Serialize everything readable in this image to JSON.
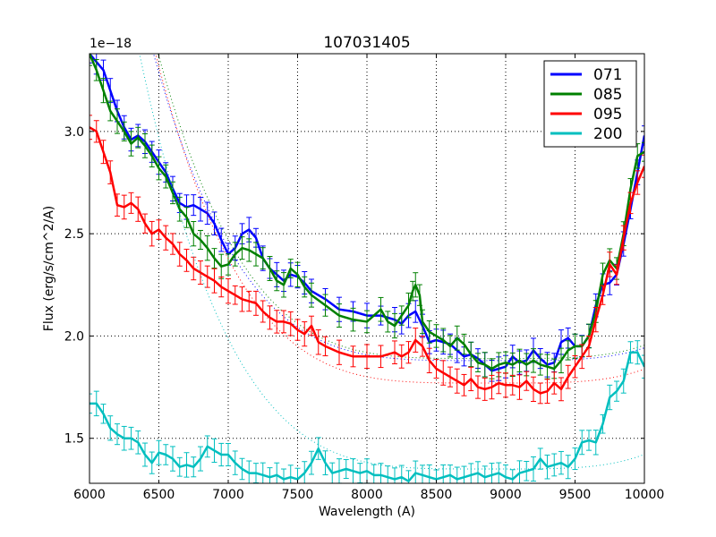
{
  "chart_data": {
    "type": "line",
    "title": "107031405",
    "xlabel": "Wavelength (A)",
    "ylabel": "Flux (erg/s/cm^2/A)",
    "offset_text": "1e−18",
    "xlim": [
      6000,
      10000
    ],
    "ylim": [
      1.28,
      3.38
    ],
    "x_ticks": [
      6000,
      6500,
      7000,
      7500,
      8000,
      8500,
      9000,
      9500,
      10000
    ],
    "x_tick_labels": [
      "6000",
      "6500",
      "7000",
      "7500",
      "8000",
      "8500",
      "9000",
      "9500",
      "10000"
    ],
    "y_ticks": [
      1.5,
      2.0,
      2.5,
      3.0
    ],
    "y_tick_labels": [
      "1.5",
      "2.0",
      "2.5",
      "3.0"
    ],
    "grid": true,
    "legend_position": "top-right",
    "series": [
      {
        "name": "071",
        "color": "#0000ff",
        "points": [
          [
            6000,
            3.38
          ],
          [
            6050,
            3.34
          ],
          [
            6100,
            3.3
          ],
          [
            6150,
            3.2
          ],
          [
            6200,
            3.1
          ],
          [
            6250,
            3.02
          ],
          [
            6300,
            2.96
          ],
          [
            6350,
            2.98
          ],
          [
            6400,
            2.95
          ],
          [
            6450,
            2.9
          ],
          [
            6500,
            2.85
          ],
          [
            6550,
            2.8
          ],
          [
            6600,
            2.72
          ],
          [
            6650,
            2.65
          ],
          [
            6700,
            2.63
          ],
          [
            6750,
            2.64
          ],
          [
            6800,
            2.62
          ],
          [
            6850,
            2.6
          ],
          [
            6900,
            2.55
          ],
          [
            6950,
            2.47
          ],
          [
            7000,
            2.4
          ],
          [
            7050,
            2.43
          ],
          [
            7100,
            2.5
          ],
          [
            7150,
            2.52
          ],
          [
            7200,
            2.48
          ],
          [
            7250,
            2.38
          ],
          [
            7300,
            2.33
          ],
          [
            7350,
            2.3
          ],
          [
            7400,
            2.27
          ],
          [
            7450,
            2.3
          ],
          [
            7500,
            2.29
          ],
          [
            7550,
            2.26
          ],
          [
            7600,
            2.22
          ],
          [
            7700,
            2.18
          ],
          [
            7800,
            2.13
          ],
          [
            7900,
            2.12
          ],
          [
            8000,
            2.1
          ],
          [
            8100,
            2.1
          ],
          [
            8200,
            2.08
          ],
          [
            8250,
            2.06
          ],
          [
            8300,
            2.1
          ],
          [
            8350,
            2.12
          ],
          [
            8400,
            2.05
          ],
          [
            8450,
            1.97
          ],
          [
            8500,
            1.98
          ],
          [
            8550,
            1.97
          ],
          [
            8600,
            1.96
          ],
          [
            8650,
            1.93
          ],
          [
            8700,
            1.9
          ],
          [
            8750,
            1.91
          ],
          [
            8800,
            1.89
          ],
          [
            8850,
            1.86
          ],
          [
            8900,
            1.83
          ],
          [
            8950,
            1.84
          ],
          [
            9000,
            1.85
          ],
          [
            9050,
            1.9
          ],
          [
            9100,
            1.87
          ],
          [
            9150,
            1.88
          ],
          [
            9200,
            1.93
          ],
          [
            9250,
            1.89
          ],
          [
            9300,
            1.86
          ],
          [
            9350,
            1.87
          ],
          [
            9400,
            1.97
          ],
          [
            9450,
            1.99
          ],
          [
            9500,
            1.95
          ],
          [
            9550,
            1.95
          ],
          [
            9600,
            2.0
          ],
          [
            9650,
            2.15
          ],
          [
            9700,
            2.25
          ],
          [
            9750,
            2.26
          ],
          [
            9800,
            2.3
          ],
          [
            9850,
            2.45
          ],
          [
            9900,
            2.62
          ],
          [
            9950,
            2.8
          ],
          [
            10000,
            2.98
          ]
        ]
      },
      {
        "name": "085",
        "color": "#008000",
        "points": [
          [
            6000,
            3.38
          ],
          [
            6050,
            3.3
          ],
          [
            6100,
            3.2
          ],
          [
            6150,
            3.1
          ],
          [
            6200,
            3.05
          ],
          [
            6250,
            3.0
          ],
          [
            6300,
            2.94
          ],
          [
            6350,
            2.97
          ],
          [
            6400,
            2.93
          ],
          [
            6450,
            2.88
          ],
          [
            6500,
            2.82
          ],
          [
            6550,
            2.78
          ],
          [
            6600,
            2.7
          ],
          [
            6650,
            2.62
          ],
          [
            6700,
            2.58
          ],
          [
            6750,
            2.5
          ],
          [
            6800,
            2.47
          ],
          [
            6850,
            2.43
          ],
          [
            6900,
            2.38
          ],
          [
            6950,
            2.34
          ],
          [
            7000,
            2.35
          ],
          [
            7050,
            2.4
          ],
          [
            7100,
            2.43
          ],
          [
            7150,
            2.42
          ],
          [
            7200,
            2.4
          ],
          [
            7250,
            2.38
          ],
          [
            7300,
            2.33
          ],
          [
            7350,
            2.27
          ],
          [
            7400,
            2.25
          ],
          [
            7450,
            2.33
          ],
          [
            7500,
            2.3
          ],
          [
            7550,
            2.24
          ],
          [
            7600,
            2.2
          ],
          [
            7700,
            2.15
          ],
          [
            7800,
            2.1
          ],
          [
            7900,
            2.08
          ],
          [
            8000,
            2.07
          ],
          [
            8100,
            2.13
          ],
          [
            8150,
            2.07
          ],
          [
            8200,
            2.05
          ],
          [
            8250,
            2.1
          ],
          [
            8300,
            2.15
          ],
          [
            8330,
            2.22
          ],
          [
            8350,
            2.25
          ],
          [
            8380,
            2.2
          ],
          [
            8400,
            2.07
          ],
          [
            8450,
            2.02
          ],
          [
            8500,
            2.0
          ],
          [
            8550,
            1.98
          ],
          [
            8600,
            1.95
          ],
          [
            8650,
            1.99
          ],
          [
            8700,
            1.96
          ],
          [
            8750,
            1.91
          ],
          [
            8800,
            1.87
          ],
          [
            8850,
            1.86
          ],
          [
            8900,
            1.84
          ],
          [
            8950,
            1.86
          ],
          [
            9000,
            1.87
          ],
          [
            9050,
            1.86
          ],
          [
            9100,
            1.88
          ],
          [
            9150,
            1.86
          ],
          [
            9200,
            1.88
          ],
          [
            9250,
            1.86
          ],
          [
            9300,
            1.85
          ],
          [
            9350,
            1.84
          ],
          [
            9400,
            1.88
          ],
          [
            9450,
            1.93
          ],
          [
            9500,
            1.95
          ],
          [
            9550,
            1.95
          ],
          [
            9600,
            2.0
          ],
          [
            9650,
            2.12
          ],
          [
            9700,
            2.3
          ],
          [
            9750,
            2.37
          ],
          [
            9800,
            2.33
          ],
          [
            9850,
            2.5
          ],
          [
            9900,
            2.72
          ],
          [
            9950,
            2.88
          ],
          [
            10000,
            2.9
          ]
        ]
      },
      {
        "name": "095",
        "color": "#ff0000",
        "points": [
          [
            6000,
            3.02
          ],
          [
            6050,
            3.0
          ],
          [
            6100,
            2.9
          ],
          [
            6150,
            2.8
          ],
          [
            6200,
            2.64
          ],
          [
            6250,
            2.63
          ],
          [
            6300,
            2.65
          ],
          [
            6350,
            2.62
          ],
          [
            6400,
            2.55
          ],
          [
            6450,
            2.5
          ],
          [
            6500,
            2.52
          ],
          [
            6550,
            2.48
          ],
          [
            6600,
            2.45
          ],
          [
            6650,
            2.4
          ],
          [
            6700,
            2.37
          ],
          [
            6750,
            2.33
          ],
          [
            6800,
            2.31
          ],
          [
            6850,
            2.29
          ],
          [
            6900,
            2.27
          ],
          [
            6950,
            2.24
          ],
          [
            7000,
            2.22
          ],
          [
            7050,
            2.2
          ],
          [
            7100,
            2.18
          ],
          [
            7150,
            2.17
          ],
          [
            7200,
            2.16
          ],
          [
            7250,
            2.12
          ],
          [
            7300,
            2.09
          ],
          [
            7350,
            2.07
          ],
          [
            7400,
            2.07
          ],
          [
            7450,
            2.06
          ],
          [
            7500,
            2.03
          ],
          [
            7550,
            2.01
          ],
          [
            7600,
            2.05
          ],
          [
            7650,
            1.97
          ],
          [
            7700,
            1.95
          ],
          [
            7800,
            1.92
          ],
          [
            7900,
            1.9
          ],
          [
            8000,
            1.9
          ],
          [
            8100,
            1.9
          ],
          [
            8200,
            1.92
          ],
          [
            8250,
            1.9
          ],
          [
            8300,
            1.92
          ],
          [
            8350,
            1.98
          ],
          [
            8400,
            1.95
          ],
          [
            8450,
            1.88
          ],
          [
            8500,
            1.84
          ],
          [
            8550,
            1.82
          ],
          [
            8600,
            1.8
          ],
          [
            8650,
            1.78
          ],
          [
            8700,
            1.76
          ],
          [
            8750,
            1.79
          ],
          [
            8800,
            1.75
          ],
          [
            8850,
            1.74
          ],
          [
            8900,
            1.75
          ],
          [
            8950,
            1.77
          ],
          [
            9000,
            1.76
          ],
          [
            9050,
            1.76
          ],
          [
            9100,
            1.75
          ],
          [
            9150,
            1.78
          ],
          [
            9200,
            1.74
          ],
          [
            9250,
            1.72
          ],
          [
            9300,
            1.73
          ],
          [
            9350,
            1.77
          ],
          [
            9400,
            1.74
          ],
          [
            9450,
            1.8
          ],
          [
            9500,
            1.85
          ],
          [
            9550,
            1.9
          ],
          [
            9600,
            1.95
          ],
          [
            9650,
            2.08
          ],
          [
            9700,
            2.2
          ],
          [
            9750,
            2.35
          ],
          [
            9800,
            2.3
          ],
          [
            9850,
            2.48
          ],
          [
            9900,
            2.65
          ],
          [
            9950,
            2.75
          ],
          [
            10000,
            2.83
          ]
        ]
      },
      {
        "name": "200",
        "color": "#00bfbf",
        "points": [
          [
            6000,
            1.67
          ],
          [
            6050,
            1.67
          ],
          [
            6100,
            1.62
          ],
          [
            6150,
            1.55
          ],
          [
            6200,
            1.52
          ],
          [
            6250,
            1.5
          ],
          [
            6300,
            1.5
          ],
          [
            6350,
            1.48
          ],
          [
            6400,
            1.42
          ],
          [
            6450,
            1.38
          ],
          [
            6500,
            1.43
          ],
          [
            6550,
            1.42
          ],
          [
            6600,
            1.4
          ],
          [
            6650,
            1.36
          ],
          [
            6700,
            1.37
          ],
          [
            6750,
            1.36
          ],
          [
            6800,
            1.4
          ],
          [
            6850,
            1.46
          ],
          [
            6900,
            1.44
          ],
          [
            6950,
            1.42
          ],
          [
            7000,
            1.42
          ],
          [
            7050,
            1.38
          ],
          [
            7100,
            1.35
          ],
          [
            7150,
            1.33
          ],
          [
            7200,
            1.33
          ],
          [
            7250,
            1.32
          ],
          [
            7300,
            1.31
          ],
          [
            7350,
            1.32
          ],
          [
            7400,
            1.3
          ],
          [
            7450,
            1.31
          ],
          [
            7500,
            1.3
          ],
          [
            7550,
            1.33
          ],
          [
            7600,
            1.38
          ],
          [
            7650,
            1.45
          ],
          [
            7700,
            1.38
          ],
          [
            7750,
            1.33
          ],
          [
            7800,
            1.34
          ],
          [
            7850,
            1.35
          ],
          [
            7900,
            1.34
          ],
          [
            7950,
            1.33
          ],
          [
            8000,
            1.34
          ],
          [
            8050,
            1.32
          ],
          [
            8100,
            1.32
          ],
          [
            8150,
            1.31
          ],
          [
            8200,
            1.3
          ],
          [
            8250,
            1.31
          ],
          [
            8300,
            1.29
          ],
          [
            8350,
            1.33
          ],
          [
            8400,
            1.32
          ],
          [
            8450,
            1.31
          ],
          [
            8500,
            1.3
          ],
          [
            8550,
            1.31
          ],
          [
            8600,
            1.32
          ],
          [
            8650,
            1.3
          ],
          [
            8700,
            1.31
          ],
          [
            8750,
            1.32
          ],
          [
            8800,
            1.33
          ],
          [
            8850,
            1.31
          ],
          [
            8900,
            1.32
          ],
          [
            8950,
            1.33
          ],
          [
            9000,
            1.31
          ],
          [
            9050,
            1.3
          ],
          [
            9100,
            1.33
          ],
          [
            9150,
            1.34
          ],
          [
            9200,
            1.35
          ],
          [
            9250,
            1.4
          ],
          [
            9300,
            1.36
          ],
          [
            9350,
            1.37
          ],
          [
            9400,
            1.38
          ],
          [
            9450,
            1.36
          ],
          [
            9500,
            1.4
          ],
          [
            9550,
            1.48
          ],
          [
            9600,
            1.49
          ],
          [
            9650,
            1.48
          ],
          [
            9700,
            1.57
          ],
          [
            9750,
            1.7
          ],
          [
            9800,
            1.73
          ],
          [
            9850,
            1.78
          ],
          [
            9900,
            1.92
          ],
          [
            9950,
            1.92
          ],
          [
            10000,
            1.85
          ]
        ]
      }
    ]
  }
}
